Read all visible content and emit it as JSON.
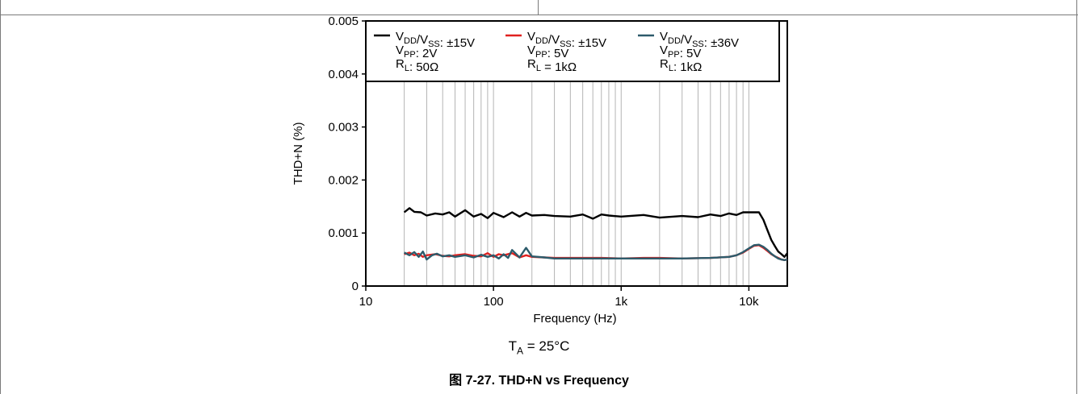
{
  "figure": {
    "condition_prefix": "T",
    "condition_sub": "A",
    "condition_value": " = 25°C",
    "caption": "图 7-27. THD+N vs Frequency"
  },
  "chart_data": {
    "type": "line",
    "title": "",
    "xlabel": "Frequency (Hz)",
    "ylabel": "THD+N (%)",
    "xscale": "log",
    "xlim": [
      10,
      20000
    ],
    "ylim": [
      0,
      0.005
    ],
    "x_ticks": [
      10,
      100,
      1000,
      10000
    ],
    "x_tick_labels": [
      "10",
      "100",
      "1k",
      "10k"
    ],
    "y_ticks": [
      0,
      0.001,
      0.002,
      0.003,
      0.004,
      0.005
    ],
    "y_tick_labels": [
      "0",
      "0.001",
      "0.002",
      "0.003",
      "0.004",
      "0.005"
    ],
    "grid": "vertical",
    "legend_position": "top",
    "legend": [
      {
        "line1": "VDD/VSS: ±15V",
        "line2": "VPP: 2V",
        "line3": "RL: 50Ω",
        "color": "#000000"
      },
      {
        "line1": "VDD/VSS: ±15V",
        "line2": "VPP: 5V",
        "line3": "RL = 1kΩ",
        "color": "#e0211f"
      },
      {
        "line1": "VDD/VSS: ±36V",
        "line2": "VPP: 5V",
        "line3": "RL: 1kΩ",
        "color": "#2d5b6b"
      }
    ],
    "series": [
      {
        "color": "#000000",
        "x": [
          20,
          22,
          24,
          27,
          30,
          35,
          40,
          45,
          50,
          60,
          70,
          80,
          90,
          100,
          120,
          140,
          160,
          180,
          200,
          250,
          300,
          400,
          500,
          600,
          700,
          800,
          1000,
          1500,
          2000,
          3000,
          4000,
          5000,
          6000,
          7000,
          8000,
          9000,
          10000,
          12000,
          13000,
          14000,
          15000,
          16000,
          17000,
          18000,
          19000,
          20000
        ],
        "values": [
          0.00139,
          0.00147,
          0.0014,
          0.00139,
          0.00133,
          0.00137,
          0.00135,
          0.00139,
          0.00131,
          0.00143,
          0.00131,
          0.00136,
          0.00128,
          0.00138,
          0.0013,
          0.00139,
          0.00131,
          0.00138,
          0.00133,
          0.00134,
          0.00132,
          0.00131,
          0.00135,
          0.00127,
          0.00135,
          0.00133,
          0.00131,
          0.00134,
          0.00129,
          0.00132,
          0.0013,
          0.00135,
          0.00132,
          0.00137,
          0.00134,
          0.00139,
          0.00139,
          0.00139,
          0.00125,
          0.00105,
          0.00087,
          0.00075,
          0.00065,
          0.0006,
          0.00055,
          0.00062
        ]
      },
      {
        "color": "#e0211f",
        "x": [
          20,
          22,
          24,
          26,
          28,
          30,
          35,
          40,
          45,
          50,
          60,
          70,
          80,
          90,
          100,
          110,
          120,
          140,
          160,
          180,
          200,
          250,
          300,
          400,
          500,
          700,
          1000,
          1500,
          2000,
          3000,
          5000,
          7000,
          8000,
          9000,
          10000,
          11000,
          12000,
          13000,
          14000,
          15000,
          16000,
          17000,
          18000,
          19000,
          20000
        ],
        "values": [
          0.0006,
          0.00063,
          0.00058,
          0.00061,
          0.00055,
          0.00058,
          0.0006,
          0.00057,
          0.00056,
          0.00058,
          0.0006,
          0.00057,
          0.00056,
          0.00062,
          0.00055,
          0.0006,
          0.00058,
          0.00062,
          0.00054,
          0.00058,
          0.00055,
          0.00054,
          0.00053,
          0.00053,
          0.00053,
          0.00053,
          0.00052,
          0.00053,
          0.00053,
          0.00052,
          0.00053,
          0.00055,
          0.00058,
          0.00063,
          0.0007,
          0.00076,
          0.00077,
          0.00072,
          0.00066,
          0.0006,
          0.00056,
          0.00053,
          0.0005,
          0.00049,
          0.0005
        ]
      },
      {
        "color": "#2d5b6b",
        "x": [
          20,
          22,
          24,
          26,
          28,
          30,
          33,
          36,
          40,
          45,
          50,
          60,
          70,
          80,
          90,
          100,
          110,
          120,
          130,
          140,
          160,
          180,
          200,
          250,
          300,
          400,
          500,
          700,
          1000,
          1500,
          2000,
          3000,
          5000,
          7000,
          8000,
          9000,
          10000,
          11000,
          12000,
          13000,
          14000,
          15000,
          16000,
          17000,
          18000,
          19000,
          20000
        ],
        "values": [
          0.00063,
          0.00058,
          0.00064,
          0.00055,
          0.00065,
          0.0005,
          0.00058,
          0.00061,
          0.00056,
          0.00058,
          0.00055,
          0.00058,
          0.00054,
          0.00059,
          0.00055,
          0.00058,
          0.00052,
          0.0006,
          0.00053,
          0.00068,
          0.00054,
          0.00072,
          0.00056,
          0.00054,
          0.00052,
          0.00052,
          0.00052,
          0.00052,
          0.00052,
          0.00052,
          0.00052,
          0.00052,
          0.00053,
          0.00055,
          0.00058,
          0.00064,
          0.00071,
          0.00077,
          0.00078,
          0.00074,
          0.00068,
          0.00061,
          0.00056,
          0.00052,
          0.0005,
          0.00049,
          0.0005
        ]
      }
    ]
  }
}
